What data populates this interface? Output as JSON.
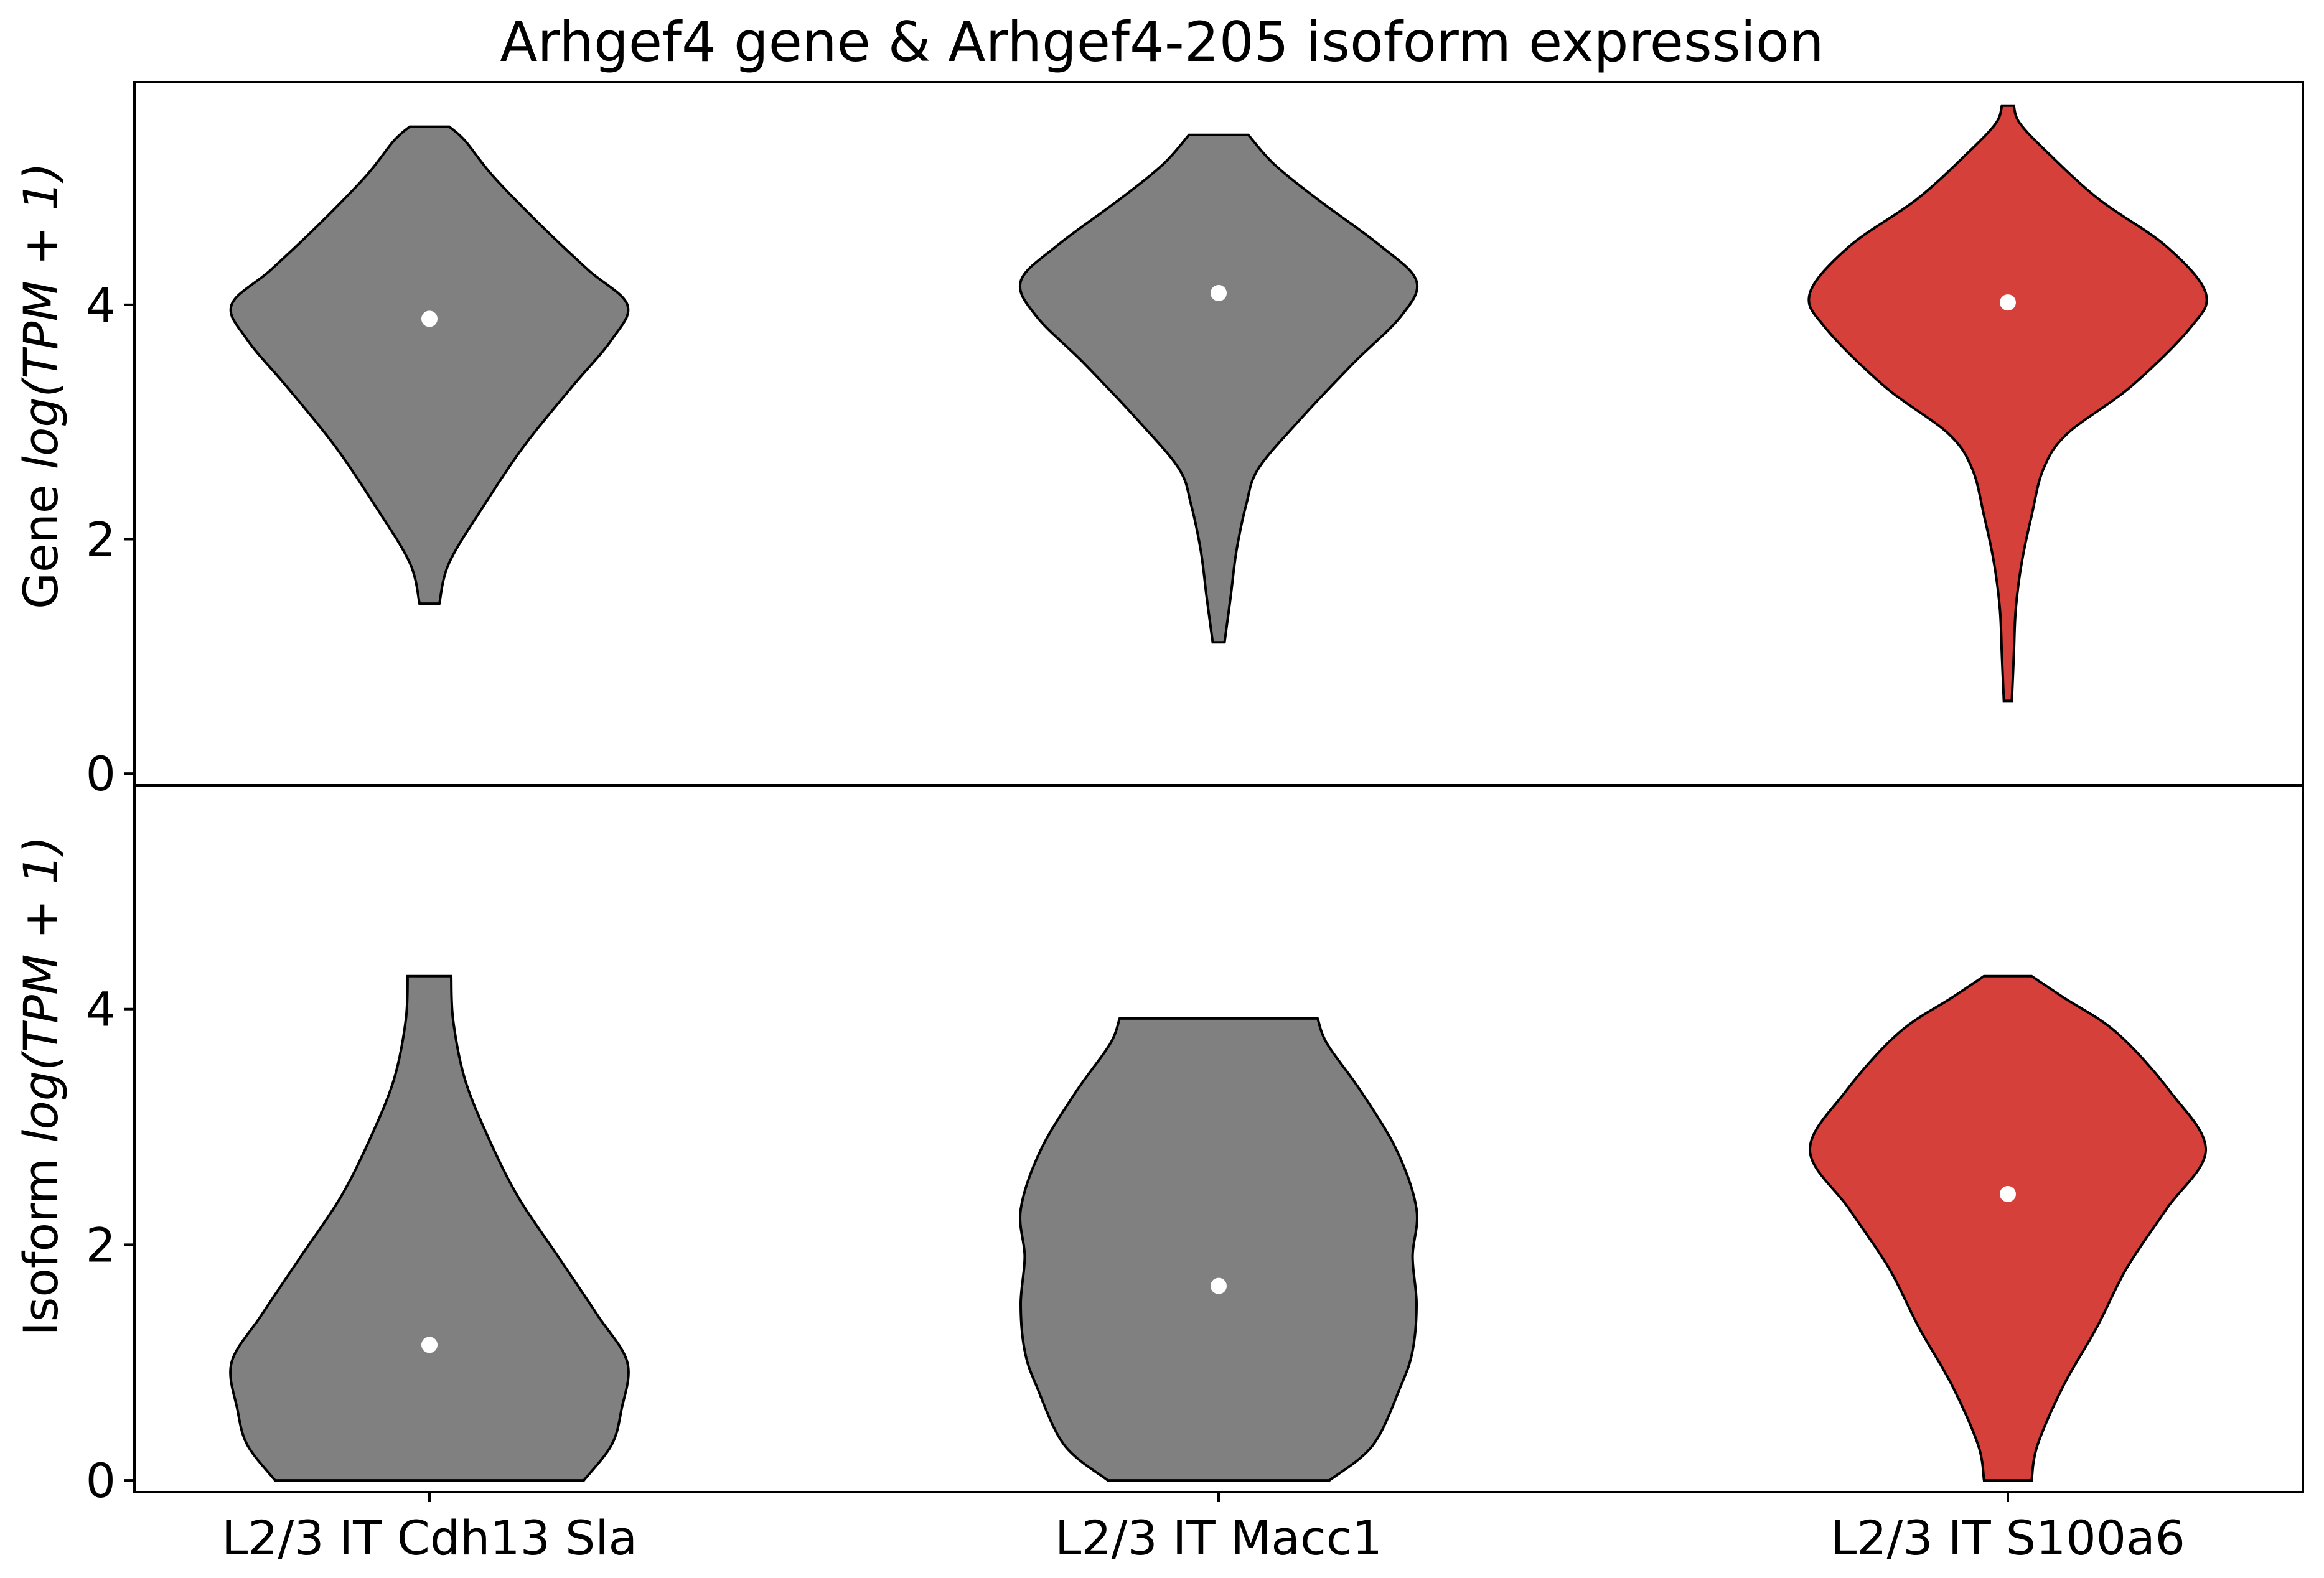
{
  "chart_data": {
    "type": "violin",
    "title": "Arhgef4 gene & Arhgef4-205 isoform expression",
    "categories": [
      "L2/3 IT Cdh13 Sla",
      "L2/3 IT Macc1",
      "L2/3 IT S100a6"
    ],
    "colors": {
      "default": "#808080",
      "highlight": "#d6403b",
      "median_dot": "#ffffff",
      "outline": "#000000"
    },
    "highlight_category": "L2/3 IT S100a6",
    "panels": [
      {
        "name": "gene",
        "ylabel_prefix": "Gene",
        "ylabel_math": "log(TPM + 1)",
        "ylim": [
          -0.1,
          5.9
        ],
        "yticks": [
          0,
          2,
          4
        ],
        "violins": [
          {
            "category": "L2/3 IT Cdh13 Sla",
            "median": 3.88,
            "profile": [
              [
                1.45,
                0.05
              ],
              [
                1.8,
                0.1
              ],
              [
                2.3,
                0.28
              ],
              [
                2.8,
                0.48
              ],
              [
                3.3,
                0.72
              ],
              [
                3.7,
                0.92
              ],
              [
                4.0,
                1.0
              ],
              [
                4.3,
                0.8
              ],
              [
                4.7,
                0.55
              ],
              [
                5.1,
                0.32
              ],
              [
                5.4,
                0.18
              ],
              [
                5.52,
                0.1
              ]
            ]
          },
          {
            "category": "L2/3 IT Macc1",
            "median": 4.1,
            "profile": [
              [
                1.12,
                0.03
              ],
              [
                1.5,
                0.06
              ],
              [
                1.9,
                0.09
              ],
              [
                2.3,
                0.14
              ],
              [
                2.6,
                0.2
              ],
              [
                3.0,
                0.4
              ],
              [
                3.5,
                0.68
              ],
              [
                3.9,
                0.92
              ],
              [
                4.2,
                1.0
              ],
              [
                4.5,
                0.82
              ],
              [
                4.9,
                0.5
              ],
              [
                5.2,
                0.28
              ],
              [
                5.45,
                0.15
              ]
            ]
          },
          {
            "category": "L2/3 IT S100a6",
            "median": 4.02,
            "profile": [
              [
                0.62,
                0.02
              ],
              [
                1.0,
                0.03
              ],
              [
                1.4,
                0.04
              ],
              [
                1.8,
                0.07
              ],
              [
                2.2,
                0.12
              ],
              [
                2.6,
                0.18
              ],
              [
                2.9,
                0.3
              ],
              [
                3.3,
                0.62
              ],
              [
                3.8,
                0.92
              ],
              [
                4.1,
                1.0
              ],
              [
                4.5,
                0.8
              ],
              [
                4.9,
                0.46
              ],
              [
                5.3,
                0.2
              ],
              [
                5.55,
                0.06
              ],
              [
                5.7,
                0.03
              ]
            ]
          }
        ]
      },
      {
        "name": "isoform",
        "ylabel_prefix": "Isoform",
        "ylabel_math": "log(TPM + 1)",
        "ylim": [
          -0.1,
          5.9
        ],
        "yticks": [
          0,
          2,
          4
        ],
        "violins": [
          {
            "category": "L2/3 IT Cdh13 Sla",
            "median": 1.15,
            "profile": [
              [
                0.0,
                0.78
              ],
              [
                0.3,
                0.92
              ],
              [
                0.6,
                0.97
              ],
              [
                1.0,
                1.0
              ],
              [
                1.4,
                0.85
              ],
              [
                1.9,
                0.65
              ],
              [
                2.4,
                0.45
              ],
              [
                2.9,
                0.3
              ],
              [
                3.4,
                0.18
              ],
              [
                3.9,
                0.12
              ],
              [
                4.28,
                0.11
              ]
            ]
          },
          {
            "category": "L2/3 IT Macc1",
            "median": 1.65,
            "profile": [
              [
                0.0,
                0.56
              ],
              [
                0.3,
                0.78
              ],
              [
                0.8,
                0.92
              ],
              [
                1.1,
                0.98
              ],
              [
                1.5,
                1.0
              ],
              [
                1.9,
                0.98
              ],
              [
                2.3,
                1.0
              ],
              [
                2.8,
                0.9
              ],
              [
                3.3,
                0.72
              ],
              [
                3.7,
                0.55
              ],
              [
                3.92,
                0.5
              ]
            ]
          },
          {
            "category": "L2/3 IT S100a6",
            "median": 2.43,
            "profile": [
              [
                0.0,
                0.12
              ],
              [
                0.3,
                0.15
              ],
              [
                0.8,
                0.28
              ],
              [
                1.3,
                0.45
              ],
              [
                1.8,
                0.6
              ],
              [
                2.3,
                0.8
              ],
              [
                2.8,
                1.0
              ],
              [
                3.3,
                0.82
              ],
              [
                3.8,
                0.55
              ],
              [
                4.1,
                0.28
              ],
              [
                4.28,
                0.12
              ]
            ]
          }
        ]
      }
    ]
  }
}
